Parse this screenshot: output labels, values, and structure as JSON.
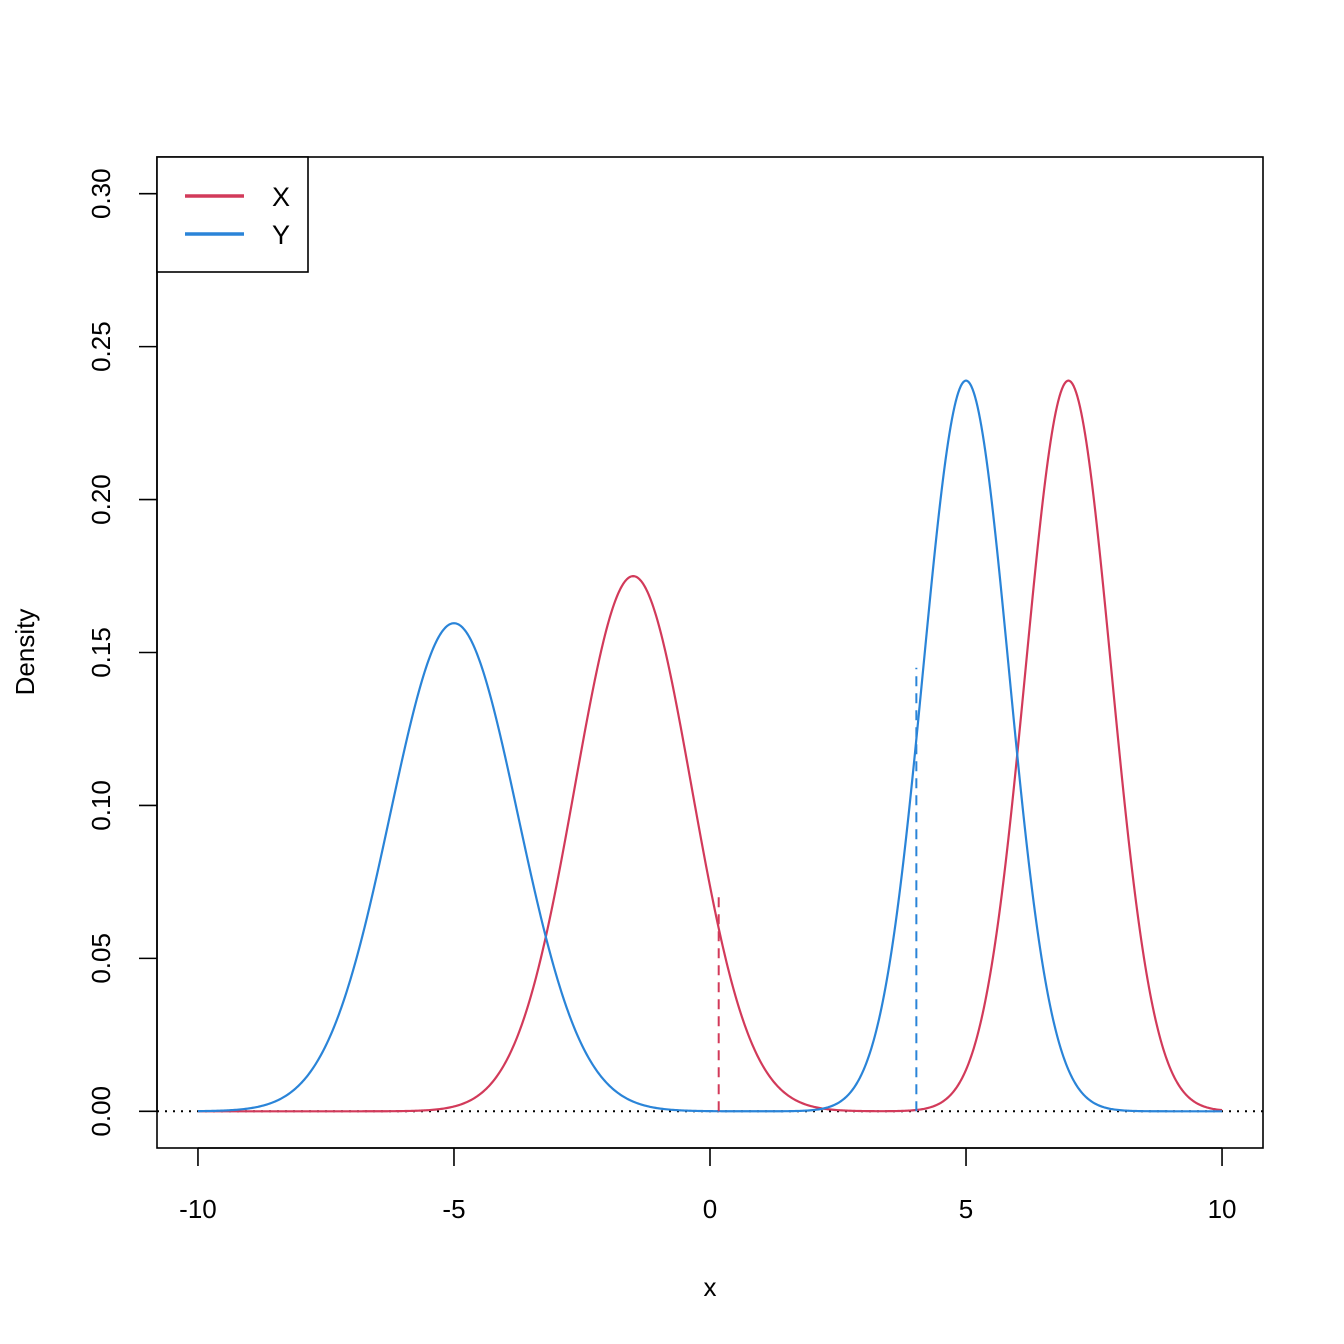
{
  "chart_data": {
    "type": "line",
    "xlabel": "x",
    "ylabel": "Density",
    "xlim": [
      -10.8,
      10.8
    ],
    "ylim": [
      -0.012,
      0.312
    ],
    "x_ticks": [
      -10,
      -5,
      0,
      5,
      10
    ],
    "x_tick_labels": [
      "-10",
      "-5",
      "0",
      "5",
      "10"
    ],
    "y_ticks": [
      0.0,
      0.05,
      0.1,
      0.15,
      0.2,
      0.25,
      0.3
    ],
    "y_tick_labels": [
      "0.00",
      "0.05",
      "0.10",
      "0.15",
      "0.20",
      "0.25",
      "0.30"
    ],
    "x_range": [
      -10,
      10
    ],
    "legend": {
      "position": "top-left",
      "entries": [
        {
          "label": "X",
          "color": "#D23A5A"
        },
        {
          "label": "Y",
          "color": "#2A84D8"
        }
      ]
    },
    "series": [
      {
        "name": "X",
        "color": "#D23A5A",
        "mixture": [
          {
            "weight": 0.5,
            "mean": -1.5,
            "sd": 1.14
          },
          {
            "weight": 0.5,
            "mean": 7.0,
            "sd": 0.835
          }
        ],
        "marker_x": 0.17,
        "marker_y": 0.072
      },
      {
        "name": "Y",
        "color": "#2A84D8",
        "mixture": [
          {
            "weight": 0.5,
            "mean": -5.0,
            "sd": 1.25
          },
          {
            "weight": 0.5,
            "mean": 5.0,
            "sd": 0.835
          }
        ],
        "marker_x": 4.03,
        "marker_y": 0.145
      }
    ],
    "baseline": {
      "y": 0,
      "style": "dotted",
      "color": "#000000"
    },
    "grid": false
  }
}
